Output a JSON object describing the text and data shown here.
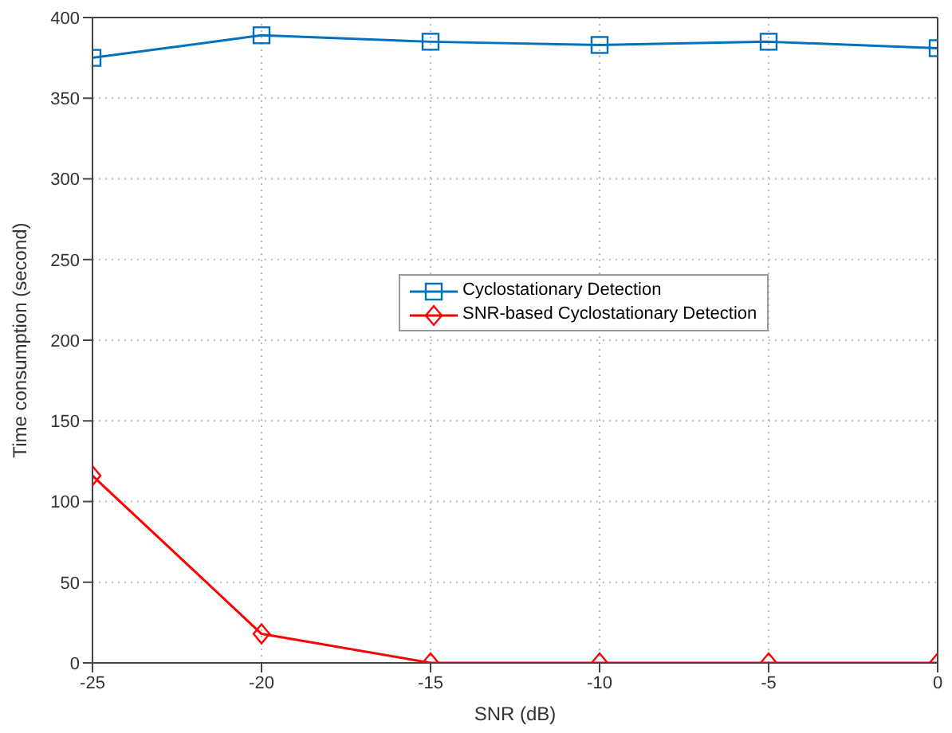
{
  "chart_data": {
    "type": "line",
    "xlabel": "SNR (dB)",
    "ylabel": "Time consumption (second)",
    "x": [
      -25,
      -20,
      -15,
      -10,
      -5,
      0
    ],
    "series": [
      {
        "name": "Cyclostationary Detection",
        "color": "#0072bd",
        "marker": "square",
        "values": [
          375,
          389,
          385,
          383,
          385,
          381
        ]
      },
      {
        "name": "SNR-based Cyclostationary Detection",
        "color": "#ff0000",
        "marker": "diamond",
        "values": [
          116,
          18,
          0,
          0,
          0,
          0
        ]
      }
    ],
    "xlim": [
      -25,
      0
    ],
    "xticks": [
      -25,
      -20,
      -15,
      -10,
      -5,
      0
    ],
    "ylim": [
      0,
      400
    ],
    "yticks": [
      0,
      50,
      100,
      150,
      200,
      250,
      300,
      350,
      400
    ],
    "grid": true,
    "legend": "right",
    "line_style": "solid"
  }
}
